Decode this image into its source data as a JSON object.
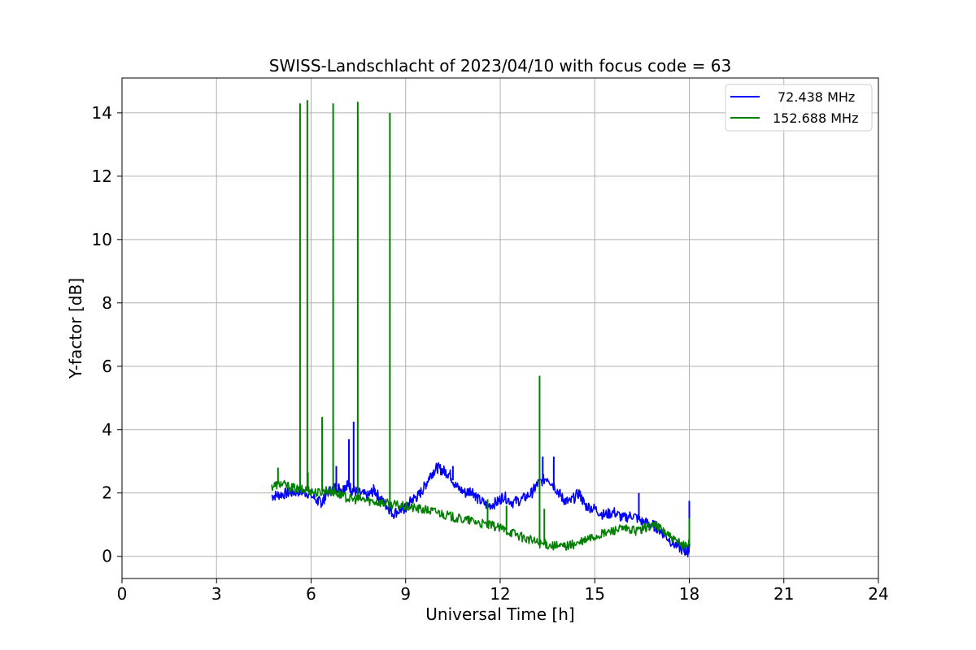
{
  "chart_data": {
    "type": "line",
    "title": "SWISS-Landschlacht of 2023/04/10 with focus code = 63",
    "xlabel": "Universal Time [h]",
    "ylabel": "Y-factor [dB]",
    "xlim": [
      0,
      24
    ],
    "ylim": [
      -0.7,
      15.1
    ],
    "xticks": [
      0,
      3,
      6,
      9,
      12,
      15,
      18,
      21,
      24
    ],
    "yticks": [
      0,
      2,
      4,
      6,
      8,
      10,
      12,
      14
    ],
    "xtick_labels": [
      "0",
      "3",
      "6",
      "9",
      "12",
      "15",
      "18",
      "21",
      "24"
    ],
    "ytick_labels": [
      "0",
      "2",
      "4",
      "6",
      "8",
      "10",
      "12",
      "14"
    ],
    "grid": true,
    "legend_position": "top-right",
    "series": [
      {
        "name": "72.438 MHz",
        "color": "#0000ff",
        "x": [
          4.75,
          5.0,
          5.3,
          5.6,
          5.9,
          6.2,
          6.35,
          6.5,
          6.8,
          7.0,
          7.15,
          7.3,
          7.5,
          7.8,
          8.0,
          8.2,
          8.4,
          8.6,
          8.9,
          9.0,
          9.2,
          9.4,
          9.6,
          9.8,
          10.0,
          10.2,
          10.4,
          10.6,
          10.9,
          11.1,
          11.3,
          11.6,
          11.9,
          12.1,
          12.4,
          12.7,
          13.0,
          13.2,
          13.5,
          13.8,
          14.0,
          14.2,
          14.5,
          14.7,
          15.0,
          15.3,
          15.6,
          15.9,
          16.2,
          16.5,
          16.8,
          17.0,
          17.2,
          17.5,
          17.8,
          17.95,
          18.0
        ],
        "y": [
          1.9,
          1.95,
          2.0,
          2.05,
          2.0,
          1.75,
          1.7,
          2.0,
          2.2,
          2.1,
          2.3,
          2.1,
          2.0,
          1.9,
          2.1,
          1.8,
          1.6,
          1.35,
          1.5,
          1.5,
          1.8,
          1.9,
          2.2,
          2.6,
          2.8,
          2.7,
          2.6,
          2.2,
          2.0,
          2.1,
          1.8,
          1.6,
          1.7,
          1.9,
          1.7,
          1.8,
          2.0,
          2.3,
          2.5,
          2.1,
          1.8,
          1.7,
          2.0,
          1.6,
          1.5,
          1.3,
          1.4,
          1.2,
          1.3,
          1.1,
          1.0,
          0.9,
          0.7,
          0.4,
          0.2,
          0.15,
          0.3
        ],
        "spikes": [
          {
            "x": 6.8,
            "y": 2.85
          },
          {
            "x": 7.2,
            "y": 3.7
          },
          {
            "x": 7.35,
            "y": 4.25
          },
          {
            "x": 10.5,
            "y": 2.85
          },
          {
            "x": 13.35,
            "y": 3.15
          },
          {
            "x": 13.7,
            "y": 3.15
          },
          {
            "x": 16.4,
            "y": 2.0
          },
          {
            "x": 18.0,
            "y": 1.75
          }
        ]
      },
      {
        "name": "152.688 MHz",
        "color": "#008000",
        "x": [
          4.75,
          5.0,
          5.3,
          5.6,
          5.9,
          6.2,
          6.5,
          6.8,
          7.0,
          7.3,
          7.6,
          7.9,
          8.2,
          8.5,
          8.8,
          9.1,
          9.4,
          9.7,
          10.0,
          10.3,
          10.6,
          10.9,
          11.2,
          11.5,
          11.8,
          12.1,
          12.4,
          12.7,
          13.0,
          13.3,
          13.6,
          13.9,
          14.2,
          14.5,
          14.8,
          15.1,
          15.4,
          15.7,
          16.0,
          16.3,
          16.6,
          16.9,
          17.2,
          17.5,
          17.8,
          18.0
        ],
        "y": [
          2.2,
          2.3,
          2.2,
          2.1,
          2.1,
          2.0,
          2.1,
          2.0,
          1.9,
          1.8,
          1.8,
          1.75,
          1.7,
          1.65,
          1.6,
          1.55,
          1.5,
          1.45,
          1.4,
          1.3,
          1.2,
          1.15,
          1.1,
          1.0,
          0.95,
          0.85,
          0.75,
          0.6,
          0.5,
          0.4,
          0.35,
          0.3,
          0.35,
          0.4,
          0.55,
          0.65,
          0.75,
          0.85,
          0.85,
          0.8,
          0.9,
          1.0,
          0.8,
          0.5,
          0.35,
          0.4
        ],
        "spikes": [
          {
            "x": 4.95,
            "y": 2.8
          },
          {
            "x": 5.65,
            "y": 14.3
          },
          {
            "x": 5.88,
            "y": 14.4
          },
          {
            "x": 5.9,
            "y": 2.65
          },
          {
            "x": 6.35,
            "y": 4.4
          },
          {
            "x": 6.7,
            "y": 14.3
          },
          {
            "x": 7.48,
            "y": 14.35
          },
          {
            "x": 8.5,
            "y": 14.0
          },
          {
            "x": 11.6,
            "y": 1.8
          },
          {
            "x": 12.2,
            "y": 1.6
          },
          {
            "x": 13.25,
            "y": 5.7
          },
          {
            "x": 13.4,
            "y": 1.5
          },
          {
            "x": 18.0,
            "y": 1.2
          }
        ]
      }
    ]
  }
}
